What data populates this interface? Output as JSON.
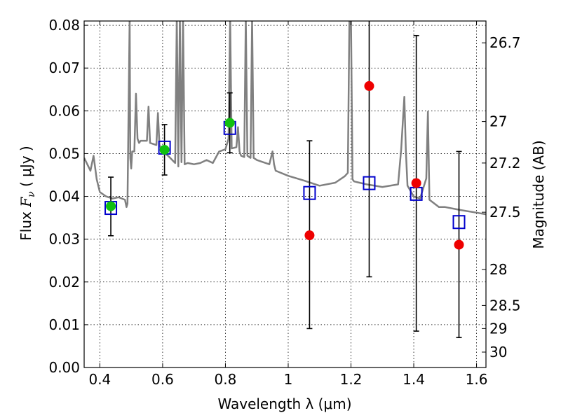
{
  "chart_data": {
    "type": "scatter",
    "xlabel": "Wavelength  λ (μm)",
    "ylabel": "Flux  Fν  ( μJy )",
    "ylabel_parts": {
      "prefix": "Flux ",
      "symbol": "F",
      "subscript": "ν",
      "suffix": "  ( μJy )"
    },
    "ylabel_right": "Magnitude (AB)",
    "xlim": [
      0.35,
      1.63
    ],
    "ylim": [
      0.0,
      0.081
    ],
    "grid": true,
    "x_ticks": [
      {
        "value": 0.4,
        "label": "0.4"
      },
      {
        "value": 0.6,
        "label": "0.6"
      },
      {
        "value": 0.8,
        "label": "0.8"
      },
      {
        "value": 1.0,
        "label": "1"
      },
      {
        "value": 1.2,
        "label": "1.2"
      },
      {
        "value": 1.4,
        "label": "1.4"
      },
      {
        "value": 1.6,
        "label": "1.6"
      }
    ],
    "y_ticks": [
      {
        "value": 0.0,
        "label": "0.00"
      },
      {
        "value": 0.01,
        "label": "0.01"
      },
      {
        "value": 0.02,
        "label": "0.02"
      },
      {
        "value": 0.03,
        "label": "0.03"
      },
      {
        "value": 0.04,
        "label": "0.04"
      },
      {
        "value": 0.05,
        "label": "0.05"
      },
      {
        "value": 0.06,
        "label": "0.06"
      },
      {
        "value": 0.07,
        "label": "0.07"
      },
      {
        "value": 0.08,
        "label": "0.08"
      }
    ],
    "right_ticks": [
      {
        "flux": 0.0759,
        "label": "26.7"
      },
      {
        "flux": 0.0575,
        "label": "27"
      },
      {
        "flux": 0.0478,
        "label": "27.2"
      },
      {
        "flux": 0.0363,
        "label": "27.5"
      },
      {
        "flux": 0.0229,
        "label": "28"
      },
      {
        "flux": 0.0145,
        "label": "28.5"
      },
      {
        "flux": 0.0091,
        "label": "29"
      },
      {
        "flux": 0.0036,
        "label": "30"
      }
    ],
    "series": [
      {
        "name": "observed-green",
        "marker": "circle",
        "color": "#10c010",
        "points": [
          {
            "x": 0.435,
            "y": 0.0377,
            "err_low": 0.0308,
            "err_high": 0.0445
          },
          {
            "x": 0.606,
            "y": 0.0509,
            "err_low": 0.045,
            "err_high": 0.0568
          },
          {
            "x": 0.814,
            "y": 0.0572,
            "err_low": 0.0502,
            "err_high": 0.0642
          }
        ]
      },
      {
        "name": "observed-red",
        "marker": "circle",
        "color": "#ee0000",
        "points": [
          {
            "x": 1.068,
            "y": 0.0309,
            "err_low": 0.0091,
            "err_high": 0.053
          },
          {
            "x": 1.258,
            "y": 0.0658,
            "err_low": 0.0212,
            "err_high": 0.082
          },
          {
            "x": 1.408,
            "y": 0.0431,
            "err_low": 0.0085,
            "err_high": 0.0776
          },
          {
            "x": 1.544,
            "y": 0.0287,
            "err_low": 0.007,
            "err_high": 0.0505
          }
        ]
      },
      {
        "name": "model-bandpass",
        "marker": "square-open",
        "color": "#0000cc",
        "points": [
          {
            "x": 0.435,
            "y": 0.0373
          },
          {
            "x": 0.606,
            "y": 0.0514
          },
          {
            "x": 0.814,
            "y": 0.056
          },
          {
            "x": 1.068,
            "y": 0.0408
          },
          {
            "x": 1.258,
            "y": 0.0431
          },
          {
            "x": 1.408,
            "y": 0.0406
          },
          {
            "x": 1.544,
            "y": 0.034
          }
        ]
      }
    ],
    "model_spectrum": {
      "name": "model-spectrum",
      "color": "#808080",
      "x": [
        0.35,
        0.37,
        0.38,
        0.39,
        0.4,
        0.42,
        0.44,
        0.46,
        0.48,
        0.485,
        0.488,
        0.495,
        0.497,
        0.5,
        0.503,
        0.51,
        0.515,
        0.52,
        0.525,
        0.53,
        0.55,
        0.555,
        0.56,
        0.58,
        0.585,
        0.59,
        0.6,
        0.62,
        0.64,
        0.645,
        0.65,
        0.655,
        0.66,
        0.665,
        0.67,
        0.68,
        0.7,
        0.72,
        0.74,
        0.76,
        0.78,
        0.8,
        0.81,
        0.815,
        0.82,
        0.835,
        0.84,
        0.845,
        0.85,
        0.86,
        0.865,
        0.87,
        0.88,
        0.885,
        0.89,
        0.9,
        0.92,
        0.94,
        0.95,
        0.955,
        0.96,
        1.0,
        1.05,
        1.1,
        1.15,
        1.18,
        1.19,
        1.195,
        1.2,
        1.205,
        1.21,
        1.25,
        1.3,
        1.35,
        1.36,
        1.37,
        1.375,
        1.38,
        1.4,
        1.42,
        1.44,
        1.445,
        1.45,
        1.48,
        1.5,
        1.55,
        1.6,
        1.63
      ],
      "y": [
        0.049,
        0.046,
        0.0495,
        0.044,
        0.041,
        0.04,
        0.0395,
        0.0398,
        0.0392,
        0.0375,
        0.0383,
        0.082,
        0.049,
        0.0465,
        0.0505,
        0.0505,
        0.064,
        0.0535,
        0.0525,
        0.053,
        0.053,
        0.061,
        0.0525,
        0.052,
        0.0595,
        0.052,
        0.0505,
        0.0493,
        0.0478,
        0.082,
        0.047,
        0.082,
        0.048,
        0.082,
        0.0475,
        0.0478,
        0.0475,
        0.0478,
        0.0485,
        0.0478,
        0.0505,
        0.051,
        0.0535,
        0.082,
        0.0512,
        0.0515,
        0.0562,
        0.0505,
        0.0495,
        0.0492,
        0.082,
        0.0495,
        0.049,
        0.082,
        0.049,
        0.0485,
        0.048,
        0.0475,
        0.0505,
        0.0475,
        0.046,
        0.0448,
        0.0437,
        0.0425,
        0.0432,
        0.0447,
        0.0455,
        0.082,
        0.082,
        0.044,
        0.0435,
        0.0428,
        0.0422,
        0.0428,
        0.051,
        0.0633,
        0.0505,
        0.0425,
        0.04,
        0.0395,
        0.0442,
        0.0598,
        0.0392,
        0.0375,
        0.0375,
        0.0368,
        0.0362,
        0.0358
      ]
    }
  }
}
